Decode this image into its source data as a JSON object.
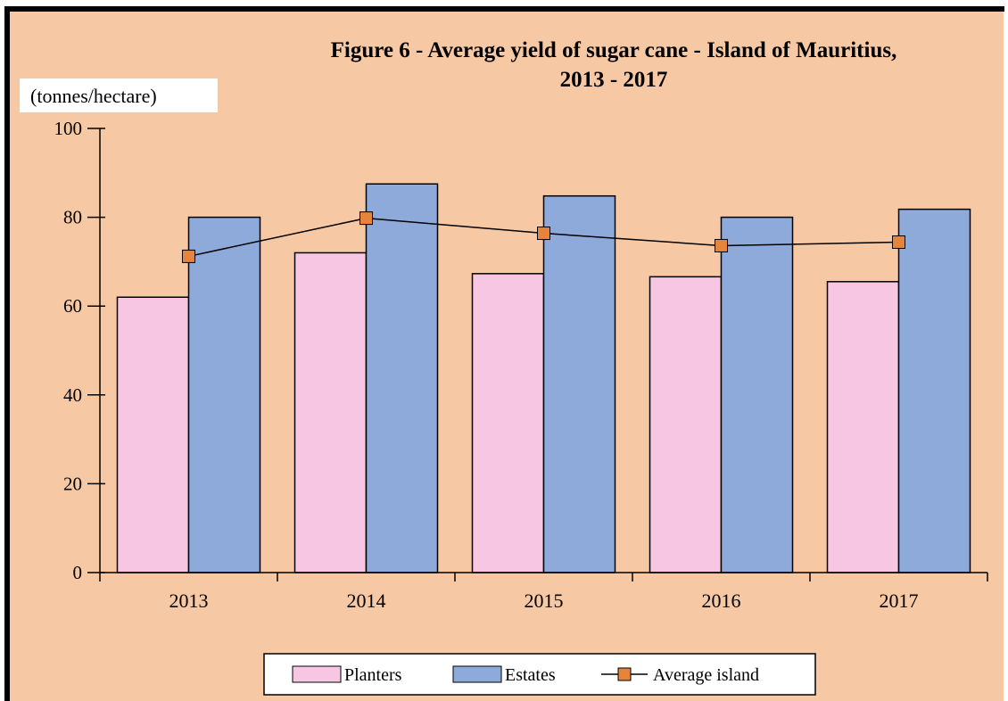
{
  "colors": {
    "background": "#f7c8a4",
    "planters": "#f7c6e2",
    "estates": "#8eaadb",
    "average_marker": "#e5843a",
    "line": "#000000"
  },
  "chart_data": {
    "type": "bar",
    "title_line1": "Figure  6 - Average yield of sugar cane - Island of Mauritius,",
    "title_line2": "2013 - 2017",
    "ylabel": "(tonnes/hectare)",
    "xlabel": "",
    "categories": [
      "2013",
      "2014",
      "2015",
      "2016",
      "2017"
    ],
    "ylim": [
      0,
      100
    ],
    "yticks": [
      "0",
      "20",
      "40",
      "60",
      "80",
      "100"
    ],
    "grid": false,
    "legend_position": "bottom",
    "series": [
      {
        "name": "Planters",
        "type": "bar",
        "values": [
          62,
          72,
          67.3,
          66.6,
          65.5
        ]
      },
      {
        "name": "Estates",
        "type": "bar",
        "values": [
          80,
          87.5,
          84.8,
          80,
          81.8
        ]
      },
      {
        "name": "Average island",
        "type": "line",
        "values": [
          71.2,
          79.8,
          76.4,
          73.6,
          74.4
        ]
      }
    ]
  }
}
